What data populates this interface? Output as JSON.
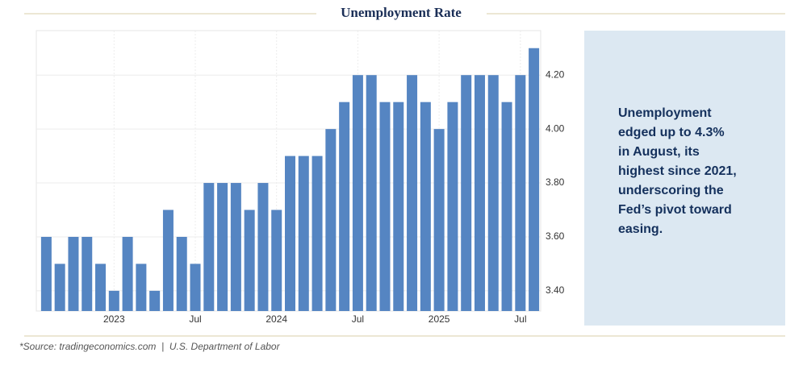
{
  "chart_data": {
    "type": "bar",
    "title": "Unemployment Rate",
    "categories": [
      null,
      null,
      null,
      null,
      null,
      "2023",
      null,
      null,
      null,
      null,
      null,
      "Jul",
      null,
      null,
      null,
      null,
      null,
      "2024",
      null,
      null,
      null,
      null,
      null,
      "Jul",
      null,
      null,
      null,
      null,
      null,
      "2025",
      null,
      null,
      null,
      null,
      null,
      "Jul",
      null
    ],
    "values": [
      3.6,
      3.5,
      3.6,
      3.6,
      3.5,
      3.4,
      3.6,
      3.5,
      3.4,
      3.7,
      3.6,
      3.5,
      3.8,
      3.8,
      3.8,
      3.7,
      3.8,
      3.7,
      3.9,
      3.9,
      3.9,
      4.0,
      4.1,
      4.2,
      4.2,
      4.1,
      4.1,
      4.2,
      4.1,
      4.0,
      4.1,
      4.2,
      4.2,
      4.2,
      4.1,
      4.2,
      4.3
    ],
    "color": "#5585c2",
    "ylim": [
      3.325,
      4.365
    ],
    "yticks": [
      {
        "value": 3.4,
        "label": "3.40"
      },
      {
        "value": 3.6,
        "label": "3.60"
      },
      {
        "value": 3.8,
        "label": "3.80"
      },
      {
        "value": 4.0,
        "label": "4.00"
      },
      {
        "value": 4.2,
        "label": "4.20"
      }
    ],
    "grid": true,
    "annotation": [
      "Unemployment",
      "edged up to 4.3%",
      "in August, its",
      "highest since 2021,",
      "underscoring the",
      "Fed’s pivot toward",
      "easing."
    ],
    "source": "*Source: tradingeconomics.com  |  U.S. Department of Labor"
  }
}
